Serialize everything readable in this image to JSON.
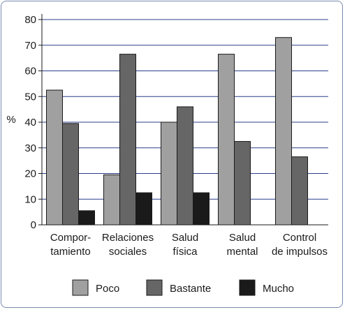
{
  "chart_data": {
    "type": "bar",
    "title": "",
    "xlabel": "",
    "ylabel": "%",
    "ylim": [
      0,
      80
    ],
    "yticks": [
      0,
      10,
      20,
      30,
      40,
      50,
      60,
      70,
      80
    ],
    "grid": true,
    "legend_position": "bottom",
    "categories": [
      [
        "Compor-",
        "tamiento"
      ],
      [
        "Relaciones",
        "sociales"
      ],
      [
        "Salud",
        "física"
      ],
      [
        "Salud",
        "mental"
      ],
      [
        "Control",
        "de impulsos"
      ]
    ],
    "series": [
      {
        "name": "Poco",
        "color": "#a0a0a0",
        "values": [
          52.5,
          19.5,
          40,
          66.5,
          73
        ]
      },
      {
        "name": "Bastante",
        "color": "#666666",
        "values": [
          39.5,
          66.5,
          46,
          32.5,
          26.5
        ]
      },
      {
        "name": "Mucho",
        "color": "#1a1a1a",
        "values": [
          5.5,
          12.5,
          12.5,
          0,
          0
        ]
      }
    ]
  }
}
